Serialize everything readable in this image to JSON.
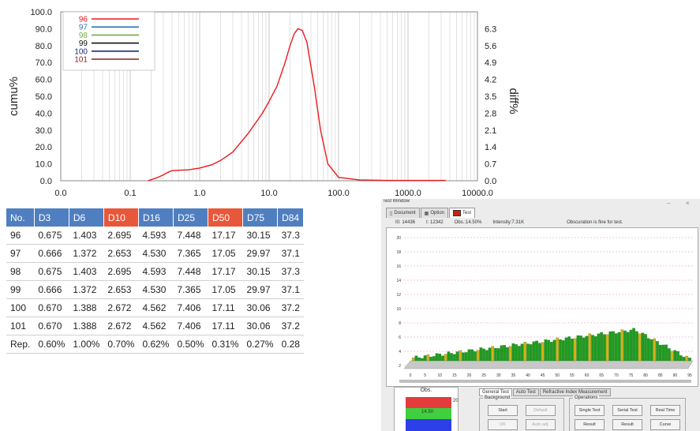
{
  "chart_data": {
    "type": "line",
    "xscale": "log",
    "xlim": [
      0.01,
      10000
    ],
    "x_ticks": [
      "0.0",
      "0.1",
      "1.0",
      "10.0",
      "100.0",
      "1000.0",
      "10000.0"
    ],
    "ylabel": "cumu%",
    "ylim": [
      0,
      100
    ],
    "y_ticks": [
      "0.0",
      "10.0",
      "20.0",
      "30.0",
      "40.0",
      "50.0",
      "60.0",
      "70.0",
      "80.0",
      "90.0",
      "100.0"
    ],
    "y2label": "diff%",
    "y2lim": [
      0,
      7
    ],
    "y2_ticks": [
      "0.0",
      "0.7",
      "1.4",
      "2.1",
      "2.8",
      "3.5",
      "4.2",
      "4.9",
      "5.6",
      "6.3"
    ],
    "grid": true,
    "legend_position": "top-left",
    "legend": [
      {
        "name": "96",
        "color": "#e8191e"
      },
      {
        "name": "97",
        "color": "#2e75b6"
      },
      {
        "name": "98",
        "color": "#70ad47"
      },
      {
        "name": "99",
        "color": "#111111"
      },
      {
        "name": "100",
        "color": "#1f2a7a"
      },
      {
        "name": "101",
        "color": "#8b1a1a"
      }
    ],
    "series": [
      {
        "name": "96",
        "color": "#e8191e",
        "x": [
          0.18,
          0.25,
          0.3,
          0.35,
          0.4,
          0.5,
          0.7,
          1.0,
          1.5,
          2.0,
          3.0,
          5.0,
          8.0,
          10.0,
          13.0,
          17.0,
          20.0,
          23.0,
          26.0,
          30.0,
          35.0,
          45.0,
          55.0,
          70.0,
          100.0,
          200.0,
          500.0,
          1000.0,
          3500.0
        ],
        "y": [
          0,
          2,
          3.5,
          5,
          6,
          6.2,
          6.5,
          7.5,
          9.5,
          12,
          17,
          28,
          40,
          47,
          56,
          70,
          80,
          87,
          90,
          89,
          82,
          55,
          30,
          10,
          2,
          0.5,
          0.2,
          0.2,
          0.2
        ]
      }
    ]
  },
  "results_table": {
    "headers": [
      "No.",
      "D3",
      "D6",
      "D10",
      "D16",
      "D25",
      "D50",
      "D75",
      "D84"
    ],
    "header_colors": [
      "#4f7fc0",
      "#4f7fc0",
      "#4f7fc0",
      "#e8573a",
      "#4f7fc0",
      "#4f7fc0",
      "#e8573a",
      "#4f7fc0",
      "#4f7fc0"
    ],
    "rows": [
      [
        "96",
        "0.675",
        "1.403",
        "2.695",
        "4.593",
        "7.448",
        "17.17",
        "30.15",
        "37.3"
      ],
      [
        "97",
        "0.666",
        "1.372",
        "2.653",
        "4.530",
        "7.365",
        "17.05",
        "29.97",
        "37.1"
      ],
      [
        "98",
        "0.675",
        "1.403",
        "2.695",
        "4.593",
        "7.448",
        "17.17",
        "30.15",
        "37.3"
      ],
      [
        "99",
        "0.666",
        "1.372",
        "2.653",
        "4.530",
        "7.365",
        "17.05",
        "29.97",
        "37.1"
      ],
      [
        "100",
        "0.670",
        "1.388",
        "2.672",
        "4.562",
        "7.406",
        "17.11",
        "30.06",
        "37.2"
      ],
      [
        "101",
        "0.670",
        "1.388",
        "2.672",
        "4.562",
        "7.406",
        "17.11",
        "30.06",
        "37.2"
      ],
      [
        "Rep.",
        "0.60%",
        "1.00%",
        "0.70%",
        "0.62%",
        "0.50%",
        "0.31%",
        "0.27%",
        "0.28"
      ]
    ]
  },
  "test_window": {
    "title": "Test Window",
    "minimize": "–",
    "close": "×",
    "tabs": [
      "Document",
      "Option",
      "Test"
    ],
    "info": {
      "id": "I0: 14436",
      "i": "I: 12342",
      "obs": "Obs.:14.50%",
      "intensity": "Intensity:7.31K",
      "message": "Obscuration is fine for test."
    },
    "histogram": {
      "y_ticks": [
        "20",
        "18",
        "16",
        "14",
        "12",
        "10",
        "8",
        "6",
        "4",
        "2"
      ],
      "x_ticks": [
        "0",
        "5",
        "10",
        "15",
        "20",
        "25",
        "30",
        "35",
        "40",
        "45",
        "50",
        "55",
        "60",
        "65",
        "70",
        "75",
        "80",
        "85",
        "90",
        "95"
      ],
      "bar_count": 95,
      "bar_color": "#1e9b1e",
      "highlight_color": "#d4b21a"
    },
    "obs_panel": {
      "label": "Obs.",
      "value": "14.50",
      "scale_top": "20"
    },
    "lower_tabs": [
      "General Test",
      "Auto Test",
      "Refractive Index Measurement"
    ],
    "background": {
      "title": "Background",
      "buttons": [
        "Start",
        "Default",
        "OK",
        "Auto adj."
      ]
    },
    "operations": {
      "title": "Operations",
      "buttons": [
        "Single Test",
        "Serial Test",
        "Real Time",
        "Result",
        "Result",
        "Curve"
      ]
    }
  }
}
